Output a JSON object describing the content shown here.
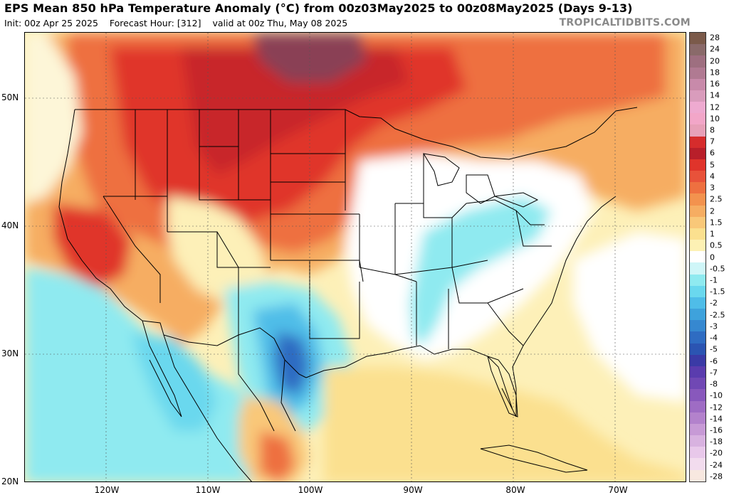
{
  "header": {
    "title": "EPS Mean 850 hPa Temperature Anomaly (°C) from 00z03May2025 to 00z08May2025 (Days 9-13)",
    "init": "Init: 00z Apr 25 2025",
    "forecast_hour": "Forecast Hour: [312]",
    "valid": "valid at 00z Thu, May 08 2025",
    "watermark": "TROPICALTIDBITS.COM"
  },
  "map": {
    "lat_labels": [
      "50N",
      "40N",
      "30N",
      "20N"
    ],
    "lon_labels": [
      "120W",
      "110W",
      "100W",
      "90W",
      "80W",
      "70W"
    ]
  },
  "colorbar": {
    "labels": [
      "28",
      "24",
      "20",
      "18",
      "16",
      "14",
      "12",
      "10",
      "8",
      "7",
      "6",
      "5",
      "4",
      "3",
      "2.5",
      "2",
      "1.5",
      "1",
      "0.5",
      "0",
      "-0.5",
      "-1",
      "-1.5",
      "-2",
      "-2.5",
      "-3",
      "-4",
      "-5",
      "-6",
      "-7",
      "-8",
      "-10",
      "-12",
      "-14",
      "-16",
      "-18",
      "-20",
      "-24",
      "-28"
    ],
    "colors": [
      "#7b5a4a",
      "#8a6a6a",
      "#9e6f80",
      "#b07a92",
      "#c88aaa",
      "#d99cbc",
      "#eeaad0",
      "#f2a6c8",
      "#e7a0b8",
      "#d62c2c",
      "#b81f2a",
      "#e0342b",
      "#e8523a",
      "#ee7040",
      "#f3924e",
      "#f6ad62",
      "#f9c879",
      "#fbe08f",
      "#fdf1b4",
      "#ffffff",
      "#cff6f8",
      "#8feaf0",
      "#6ad8ee",
      "#4fbde8",
      "#3ea2dc",
      "#3688d0",
      "#2f6cc2",
      "#2b54b2",
      "#3a3aa6",
      "#5a3cae",
      "#7048b4",
      "#8858bc",
      "#9e6cc4",
      "#b382cc",
      "#c79ad6",
      "#d8b2e0",
      "#e8c8ea",
      "#f2dcee",
      "#f8e8e0"
    ]
  }
}
